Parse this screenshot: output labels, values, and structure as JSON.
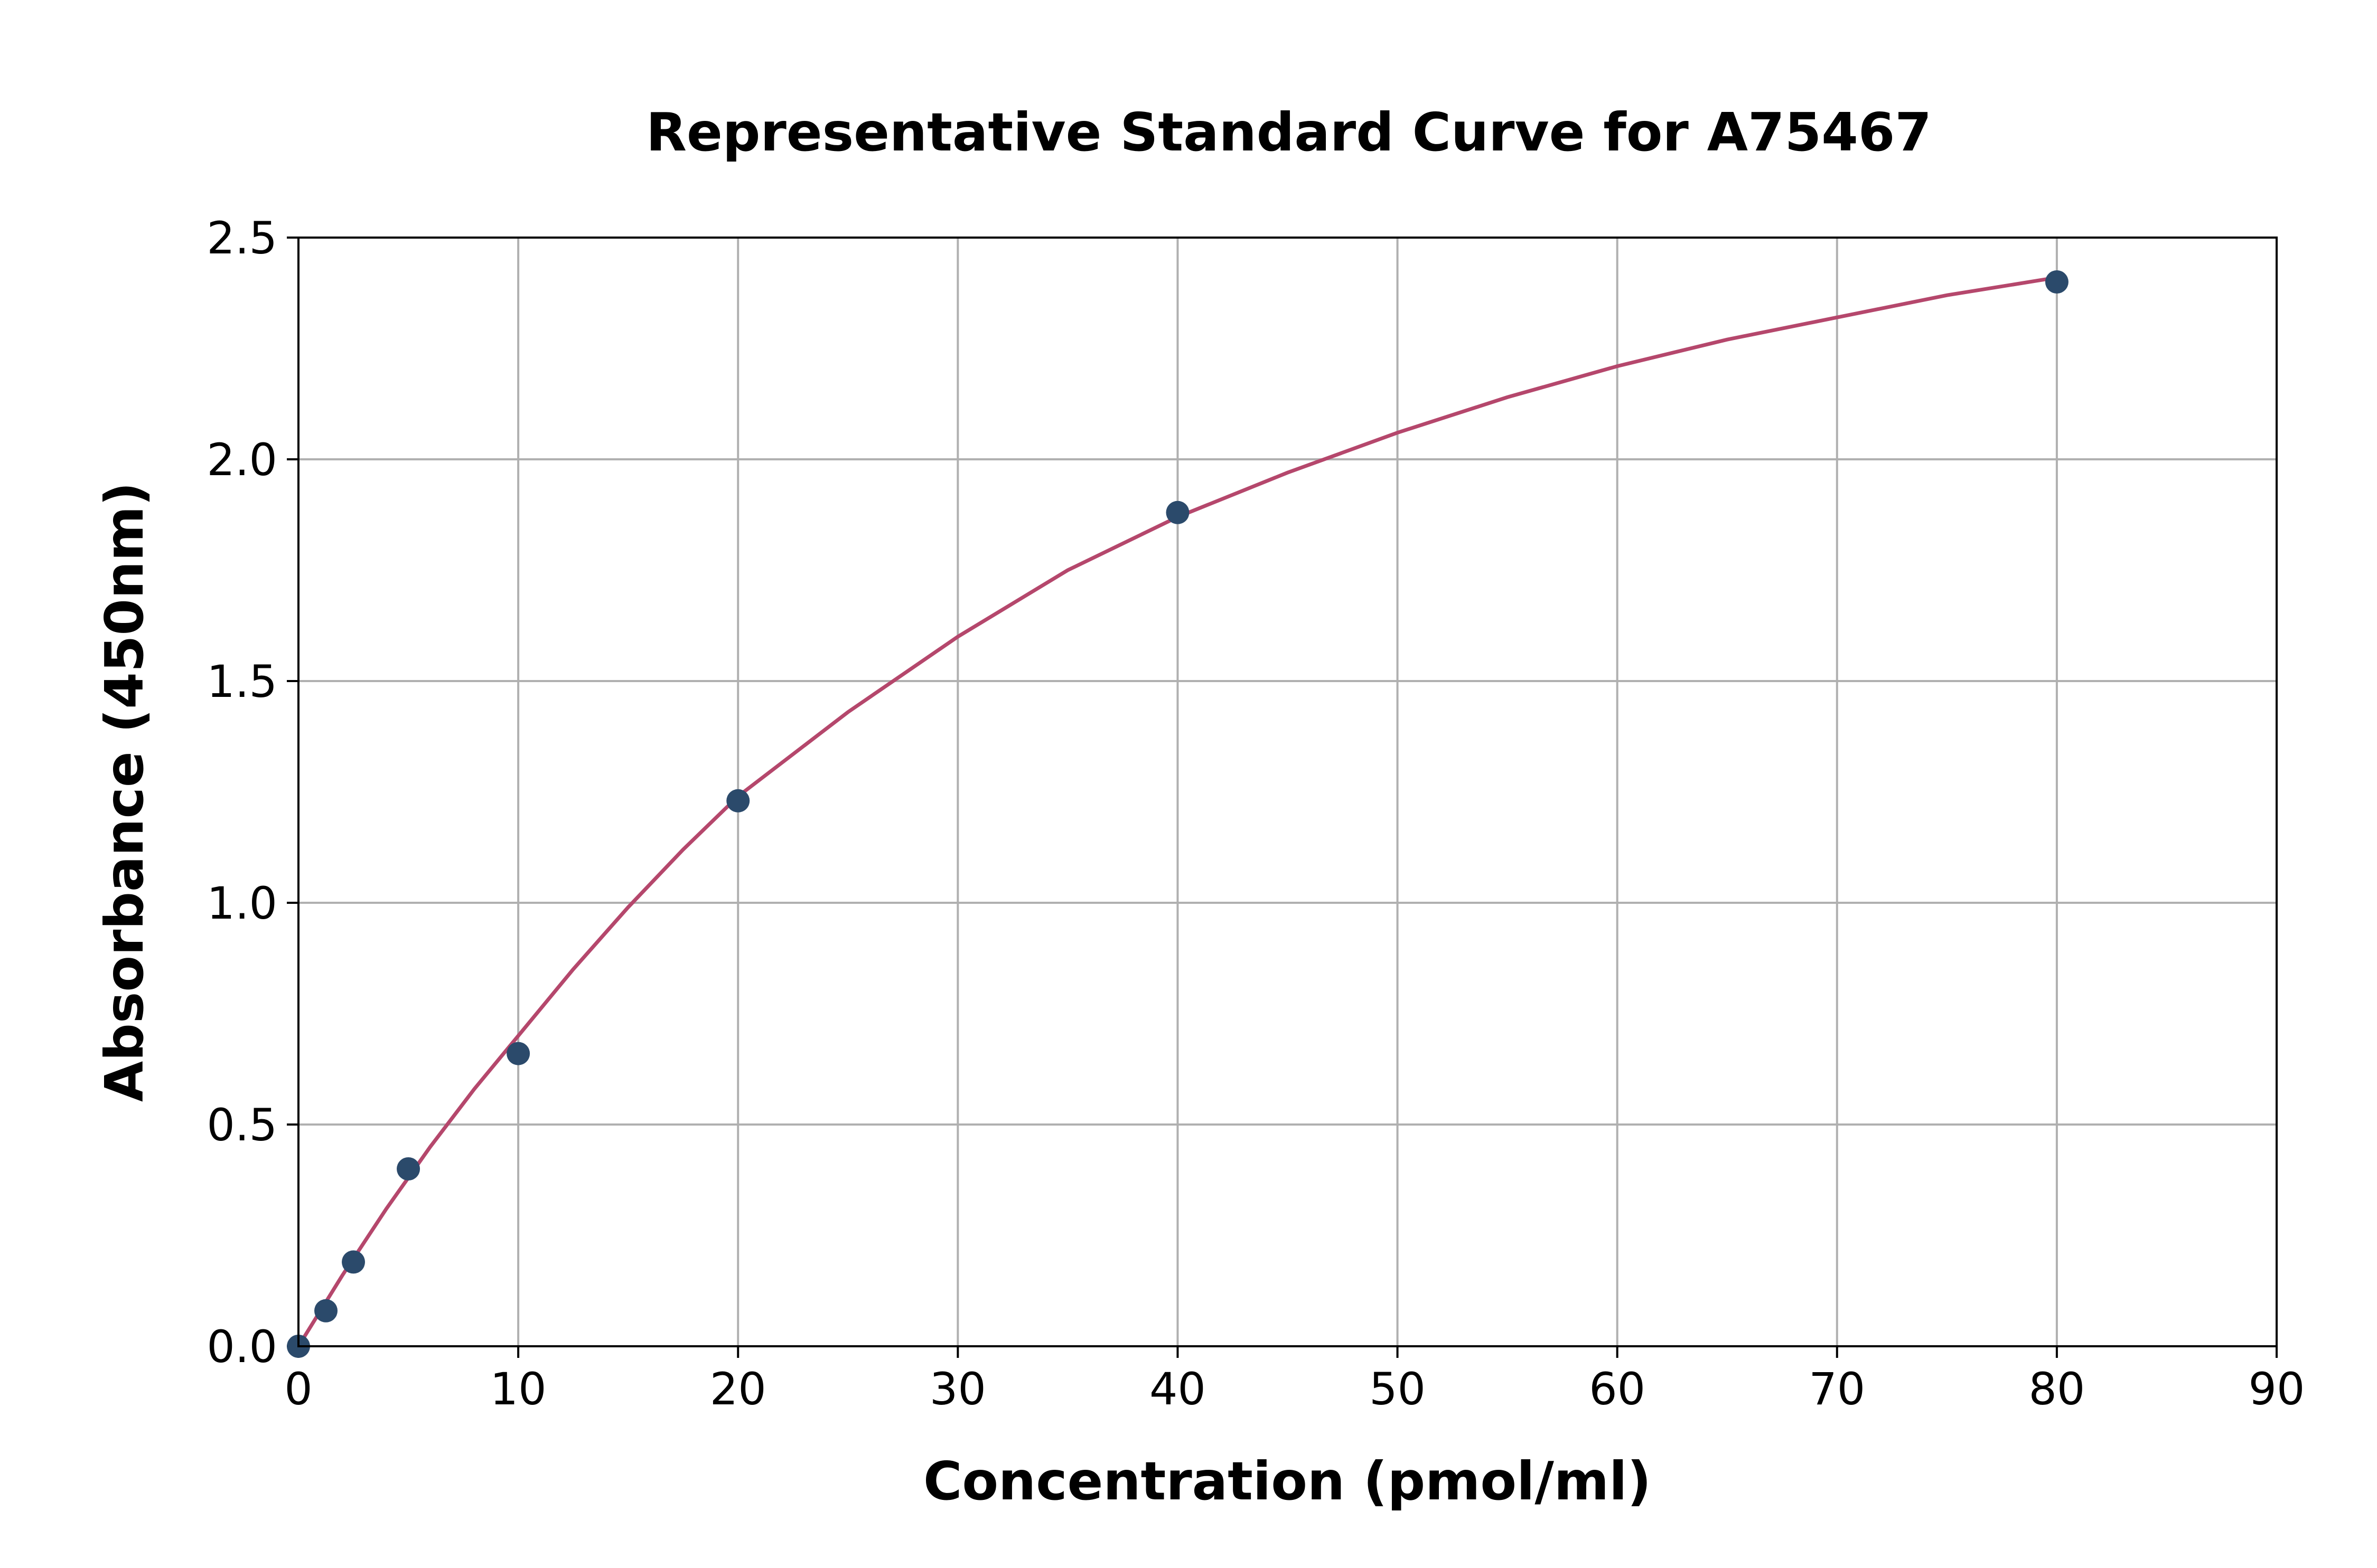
{
  "chart_data": {
    "type": "scatter",
    "title": "Representative Standard Curve for A75467",
    "xlabel": "Concentration (pmol/ml)",
    "ylabel": "Absorbance (450nm)",
    "xlim": [
      0,
      90
    ],
    "ylim": [
      0,
      2.5
    ],
    "xticks": [
      "0",
      "10",
      "20",
      "30",
      "40",
      "50",
      "60",
      "70",
      "80",
      "90"
    ],
    "yticks": [
      "0.0",
      "0.5",
      "1.0",
      "1.5",
      "2.0",
      "2.5"
    ],
    "grid": true,
    "series": [
      {
        "type": "scatter",
        "x": [
          0,
          1.25,
          2.5,
          5,
          10,
          20,
          40,
          80
        ],
        "y": [
          0.0,
          0.08,
          0.19,
          0.4,
          0.66,
          1.23,
          1.88,
          2.4
        ]
      },
      {
        "type": "line",
        "x": [
          0,
          2,
          4,
          6,
          8,
          10,
          12.5,
          15,
          17.5,
          20,
          25,
          30,
          35,
          40,
          45,
          50,
          55,
          60,
          65,
          70,
          75,
          80
        ],
        "y": [
          0.0,
          0.16,
          0.31,
          0.45,
          0.58,
          0.7,
          0.85,
          0.99,
          1.12,
          1.24,
          1.43,
          1.6,
          1.75,
          1.87,
          1.97,
          2.06,
          2.14,
          2.21,
          2.27,
          2.32,
          2.37,
          2.41
        ]
      }
    ],
    "colors": {
      "points": "#2b4a6b",
      "curve": "#b5476c"
    }
  }
}
